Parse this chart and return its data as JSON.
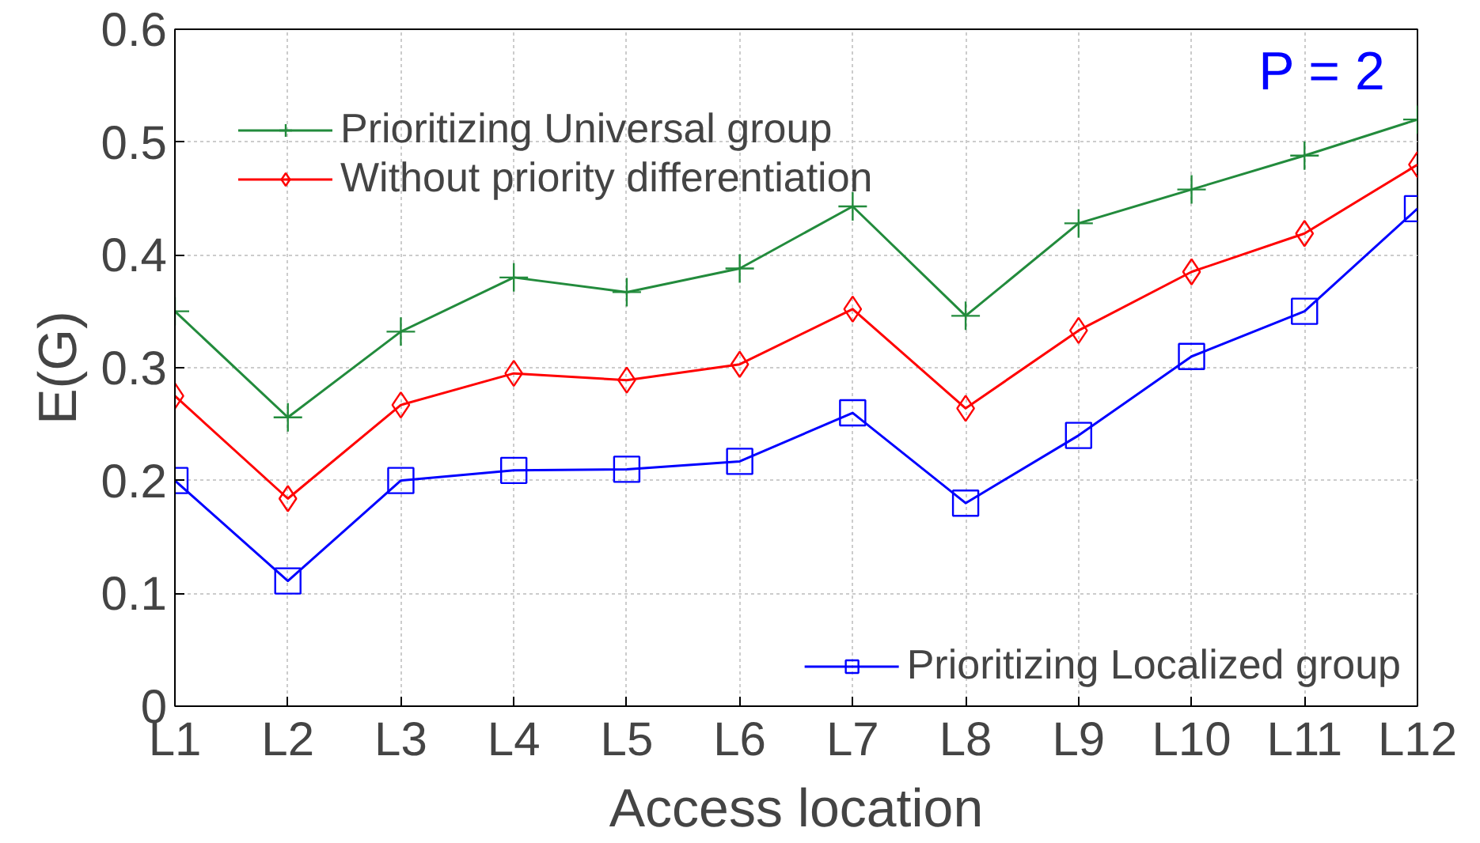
{
  "chart_data": {
    "type": "line",
    "xlabel": "Access location",
    "ylabel": "E(G)",
    "categories": [
      "L1",
      "L2",
      "L3",
      "L4",
      "L5",
      "L6",
      "L7",
      "L8",
      "L9",
      "L10",
      "L11",
      "L12"
    ],
    "series": [
      {
        "name": "Prioritizing Universal group",
        "color": "#228b3c",
        "marker": "cross",
        "values": [
          0.35,
          0.256,
          0.332,
          0.38,
          0.367,
          0.388,
          0.443,
          0.346,
          0.428,
          0.458,
          0.488,
          0.52
        ]
      },
      {
        "name": "Without priority differentiation",
        "color": "#ff0000",
        "marker": "diamond",
        "values": [
          0.275,
          0.184,
          0.267,
          0.295,
          0.289,
          0.303,
          0.352,
          0.264,
          0.333,
          0.385,
          0.419,
          0.48
        ]
      },
      {
        "name": "Prioritizing Localized group",
        "color": "#0000ff",
        "marker": "square",
        "values": [
          0.2,
          0.111,
          0.2,
          0.209,
          0.21,
          0.217,
          0.26,
          0.18,
          0.24,
          0.31,
          0.35,
          0.441
        ]
      }
    ],
    "ylim": [
      0,
      0.6
    ],
    "yticks": [
      0,
      0.1,
      0.2,
      0.3,
      0.4,
      0.5,
      0.6
    ],
    "grid": true,
    "legend": "right",
    "annotations": [
      "P = 2"
    ]
  }
}
